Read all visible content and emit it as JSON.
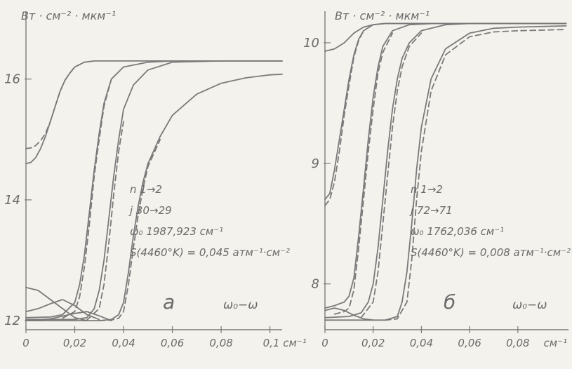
{
  "chart_data": [
    {
      "type": "line",
      "panel": "а",
      "ylabel": "Вт · см⁻² · мкм⁻¹",
      "xlabel": "ω₀−ω",
      "xunit": "0,1 см⁻¹",
      "xlim": [
        0,
        0.105
      ],
      "ylim": [
        11.85,
        17.1
      ],
      "xticks": [
        0,
        0.02,
        0.04,
        0.06,
        0.08,
        0.1
      ],
      "xtick_labels": [
        "0",
        "0,02",
        "0,04",
        "0,06",
        "0,08",
        "0,1 см⁻¹"
      ],
      "yticks": [
        12,
        14,
        16
      ],
      "ytick_labels": [
        "12",
        "14",
        "16"
      ],
      "annotations": [
        "n  1→2",
        "j  30→29",
        "ω₀ 1987,923 см⁻¹",
        "S(4460°K) = 0,045 атм⁻¹·см⁻²"
      ],
      "series": [
        {
          "style": "solid",
          "x": [
            0,
            0.002,
            0.004,
            0.006,
            0.008,
            0.01,
            0.012,
            0.014,
            0.016,
            0.018,
            0.02,
            0.024,
            0.028,
            0.032,
            0.04,
            0.06,
            0.08,
            0.105
          ],
          "y": [
            14.6,
            14.62,
            14.7,
            14.85,
            15.05,
            15.3,
            15.55,
            15.8,
            15.98,
            16.1,
            16.2,
            16.28,
            16.3,
            16.3,
            16.3,
            16.3,
            16.3,
            16.3
          ]
        },
        {
          "style": "dashed",
          "x": [
            0,
            0.002,
            0.004,
            0.006,
            0.008,
            0.01,
            0.012,
            0.014,
            0.016,
            0.018,
            0.02,
            0.024
          ],
          "y": [
            14.85,
            14.86,
            14.9,
            14.98,
            15.1,
            15.3,
            15.55,
            15.8,
            15.98,
            16.1,
            16.2,
            16.28
          ]
        },
        {
          "style": "solid",
          "x": [
            0,
            0.01,
            0.015,
            0.02,
            0.022,
            0.024,
            0.026,
            0.028,
            0.03,
            0.032,
            0.035,
            0.04,
            0.05,
            0.06,
            0.08,
            0.105
          ],
          "y": [
            12.05,
            12.06,
            12.1,
            12.3,
            12.6,
            13.1,
            13.8,
            14.5,
            15.1,
            15.6,
            16.0,
            16.2,
            16.28,
            16.3,
            16.3,
            16.3
          ]
        },
        {
          "style": "dashed",
          "x": [
            0.015,
            0.02,
            0.022,
            0.024,
            0.026,
            0.028,
            0.03,
            0.032,
            0.035
          ],
          "y": [
            12.04,
            12.15,
            12.4,
            12.9,
            13.6,
            14.4,
            15.0,
            15.55,
            16.0
          ]
        },
        {
          "style": "solid",
          "x": [
            0,
            0.02,
            0.025,
            0.028,
            0.03,
            0.032,
            0.034,
            0.036,
            0.038,
            0.04,
            0.044,
            0.05,
            0.06,
            0.08,
            0.105
          ],
          "y": [
            12.02,
            12.02,
            12.05,
            12.2,
            12.5,
            13.0,
            13.7,
            14.4,
            15.0,
            15.5,
            15.9,
            16.15,
            16.28,
            16.3,
            16.3
          ]
        },
        {
          "style": "dashed",
          "x": [
            0.025,
            0.03,
            0.032,
            0.034,
            0.036,
            0.038,
            0.04
          ],
          "y": [
            12.01,
            12.2,
            12.6,
            13.3,
            14.1,
            14.8,
            15.3
          ]
        },
        {
          "style": "solid",
          "x": [
            0,
            0.03,
            0.035,
            0.038,
            0.04,
            0.042,
            0.044,
            0.046,
            0.048,
            0.05,
            0.055,
            0.06,
            0.07,
            0.08,
            0.09,
            0.1,
            0.105
          ],
          "y": [
            12.0,
            12.0,
            12.02,
            12.1,
            12.3,
            12.8,
            13.4,
            13.9,
            14.3,
            14.6,
            15.05,
            15.4,
            15.75,
            15.93,
            16.02,
            16.07,
            16.08
          ]
        },
        {
          "style": "dashed",
          "x": [
            0.03,
            0.035,
            0.038,
            0.04,
            0.042,
            0.044,
            0.046,
            0.048,
            0.05,
            0.055
          ],
          "y": [
            12.0,
            12.01,
            12.04,
            12.15,
            12.6,
            13.2,
            13.75,
            14.2,
            14.55,
            15.0
          ]
        },
        {
          "style": "solid",
          "x": [
            0,
            0.005,
            0.01,
            0.015,
            0.02,
            0.025
          ],
          "y": [
            12.55,
            12.5,
            12.35,
            12.2,
            12.05,
            12.0
          ]
        },
        {
          "style": "solid",
          "x": [
            0,
            0.005,
            0.01,
            0.015,
            0.02,
            0.025,
            0.03
          ],
          "y": [
            12.15,
            12.2,
            12.28,
            12.35,
            12.25,
            12.1,
            12.02
          ]
        },
        {
          "style": "solid",
          "x": [
            0,
            0.01,
            0.02,
            0.025,
            0.03,
            0.035
          ],
          "y": [
            12.0,
            12.03,
            12.12,
            12.15,
            12.08,
            12.0
          ]
        }
      ]
    },
    {
      "type": "line",
      "panel": "б",
      "ylabel": "Вт · см⁻² · мкм⁻¹",
      "xlabel": "ω₀−ω",
      "xunit": "см⁻¹",
      "xlim": [
        0,
        0.101
      ],
      "ylim": [
        7.62,
        10.25
      ],
      "xticks": [
        0,
        0.02,
        0.04,
        0.06,
        0.08
      ],
      "xtick_labels": [
        "0",
        "0,02",
        "0,04",
        "0,06",
        "0,08"
      ],
      "yticks": [
        8,
        9,
        10
      ],
      "ytick_labels": [
        "8",
        "9",
        "10"
      ],
      "annotations": [
        "n  1→2",
        "j  72→71",
        "ω₀ 1762,036 см⁻¹",
        "S(4460°K) = 0,008 атм⁻¹·см⁻²"
      ],
      "series": [
        {
          "style": "solid",
          "x": [
            0,
            0.004,
            0.008,
            0.012,
            0.016,
            0.02,
            0.025,
            0.03,
            0.04,
            0.06,
            0.08,
            0.1
          ],
          "y": [
            9.93,
            9.95,
            10.0,
            10.08,
            10.13,
            10.15,
            10.16,
            10.16,
            10.16,
            10.16,
            10.16,
            10.16
          ]
        },
        {
          "style": "solid",
          "x": [
            0,
            0.002,
            0.004,
            0.006,
            0.008,
            0.01,
            0.012,
            0.014,
            0.016,
            0.02,
            0.025,
            0.03,
            0.04,
            0.06,
            0.1
          ],
          "y": [
            8.7,
            8.75,
            8.95,
            9.2,
            9.45,
            9.7,
            9.9,
            10.03,
            10.1,
            10.15,
            10.16,
            10.16,
            10.16,
            10.16,
            10.16
          ]
        },
        {
          "style": "dashed",
          "x": [
            0,
            0.002,
            0.004,
            0.006,
            0.008,
            0.01,
            0.012,
            0.014,
            0.016
          ],
          "y": [
            8.65,
            8.7,
            8.85,
            9.1,
            9.4,
            9.65,
            9.88,
            10.02,
            10.1
          ]
        },
        {
          "style": "solid",
          "x": [
            0,
            0.004,
            0.008,
            0.01,
            0.012,
            0.014,
            0.016,
            0.018,
            0.02,
            0.022,
            0.024,
            0.028,
            0.035,
            0.045,
            0.06,
            0.1
          ],
          "y": [
            7.8,
            7.82,
            7.85,
            7.9,
            8.05,
            8.4,
            8.8,
            9.2,
            9.55,
            9.8,
            9.97,
            10.1,
            10.15,
            10.16,
            10.16,
            10.16
          ]
        },
        {
          "style": "dashed",
          "x": [
            0.004,
            0.008,
            0.01,
            0.012,
            0.014,
            0.016,
            0.018,
            0.02,
            0.022,
            0.024,
            0.028
          ],
          "y": [
            7.75,
            7.77,
            7.8,
            7.95,
            8.3,
            8.7,
            9.1,
            9.45,
            9.75,
            9.92,
            10.08
          ]
        },
        {
          "style": "solid",
          "x": [
            0,
            0.01,
            0.015,
            0.018,
            0.02,
            0.022,
            0.024,
            0.026,
            0.028,
            0.03,
            0.032,
            0.035,
            0.04,
            0.05,
            0.06,
            0.1
          ],
          "y": [
            7.72,
            7.73,
            7.76,
            7.85,
            8.0,
            8.3,
            8.7,
            9.1,
            9.45,
            9.7,
            9.87,
            10.0,
            10.1,
            10.15,
            10.16,
            10.16
          ]
        },
        {
          "style": "dashed",
          "x": [
            0.015,
            0.02,
            0.022,
            0.024,
            0.026,
            0.028,
            0.03,
            0.032,
            0.035,
            0.04
          ],
          "y": [
            7.72,
            7.85,
            8.1,
            8.5,
            8.9,
            9.3,
            9.6,
            9.8,
            9.97,
            10.08
          ]
        },
        {
          "style": "solid",
          "x": [
            0,
            0.025,
            0.03,
            0.032,
            0.034,
            0.036,
            0.038,
            0.04,
            0.044,
            0.05,
            0.06,
            0.07,
            0.08,
            0.1
          ],
          "y": [
            7.7,
            7.7,
            7.73,
            7.85,
            8.1,
            8.5,
            8.95,
            9.3,
            9.7,
            9.95,
            10.08,
            10.12,
            10.13,
            10.14
          ]
        },
        {
          "style": "dashed",
          "x": [
            0.025,
            0.03,
            0.034,
            0.036,
            0.038,
            0.04,
            0.044,
            0.05,
            0.06,
            0.07,
            0.08,
            0.1
          ],
          "y": [
            7.7,
            7.71,
            7.85,
            8.2,
            8.7,
            9.1,
            9.6,
            9.9,
            10.05,
            10.09,
            10.1,
            10.11
          ]
        },
        {
          "style": "solid",
          "x": [
            0,
            0.004,
            0.008,
            0.012,
            0.016,
            0.02
          ],
          "y": [
            7.78,
            7.8,
            7.78,
            7.74,
            7.71,
            7.7
          ]
        }
      ]
    }
  ]
}
